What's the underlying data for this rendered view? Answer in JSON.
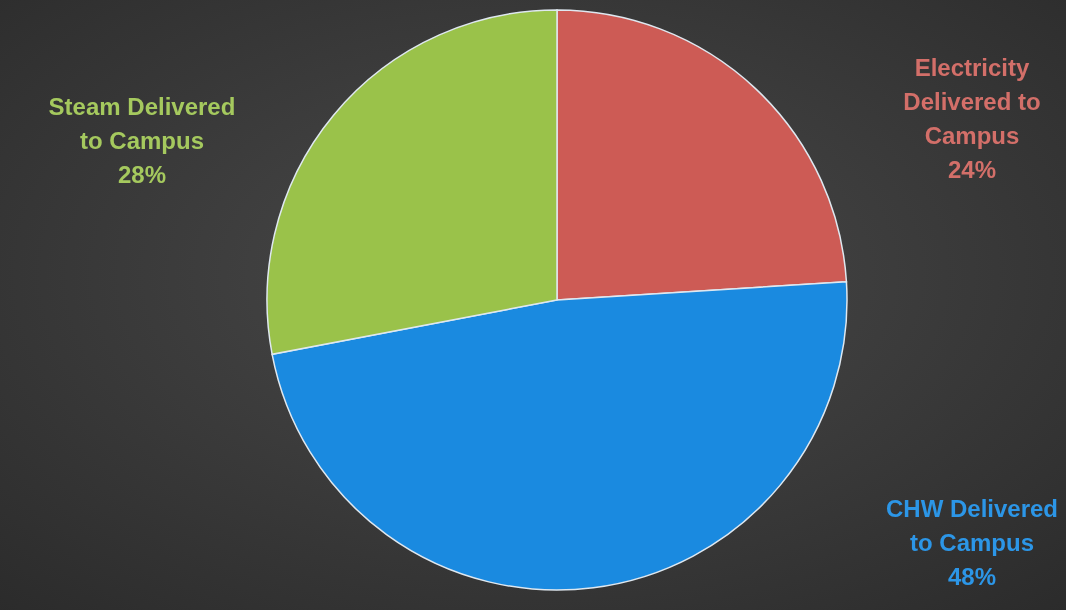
{
  "chart_data": {
    "type": "pie",
    "categories": [
      "Electricity Delivered to Campus",
      "CHW Delivered to Campus",
      "Steam Delivered to Campus"
    ],
    "values": [
      24,
      48,
      28
    ],
    "colors": [
      "#cd5b55",
      "#1a8ae0",
      "#9ac24a"
    ],
    "value_labels": [
      "24%",
      "48%",
      "28%"
    ]
  }
}
